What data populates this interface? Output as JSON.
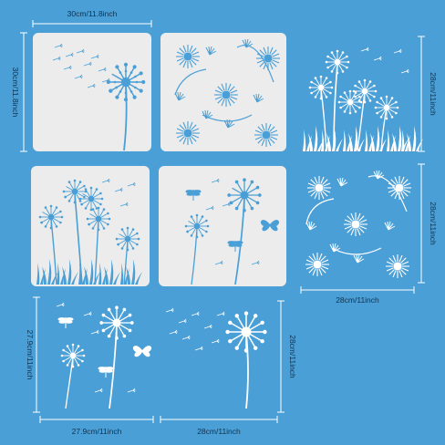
{
  "background_color": "#4a9fd6",
  "stencil_color": "#ececec",
  "design_color": "#4a9fd6",
  "line_color": "#ffffff",
  "text_color": "#10324f",
  "stencils": [
    {
      "id": "stencil-1",
      "motif": "dandelion-seeds-blowing-icon"
    },
    {
      "id": "stencil-2",
      "motif": "dandelion-flower-heads-icon"
    },
    {
      "id": "stencil-4",
      "motif": "dandelion-meadow-grass-icon"
    },
    {
      "id": "stencil-5",
      "motif": "dandelion-dragonfly-butterfly-icon"
    }
  ],
  "cutouts": [
    {
      "id": "cutout-3",
      "motif": "dandelion-field-grass-icon"
    },
    {
      "id": "cutout-6",
      "motif": "dandelion-flower-ring-icon"
    },
    {
      "id": "cutout-7",
      "motif": "dandelion-dragonfly-butterfly-icon"
    },
    {
      "id": "cutout-8",
      "motif": "dandelion-seeds-blowing-icon"
    }
  ],
  "dimensions": {
    "top_width": "30cm/11.8inch",
    "left_height_top": "30cm/11.8inch",
    "right_height_top": "28cm/11inch",
    "right_height_middle": "28cm/11inch",
    "middle_right_width": "28cm/11inch",
    "left_height_bottom": "27.9cm/11inch",
    "bottom_left_width": "27.9cm/11inch",
    "bottom_right_width": "28cm/11inch",
    "bottom_right_height": "28cm/11inch"
  }
}
